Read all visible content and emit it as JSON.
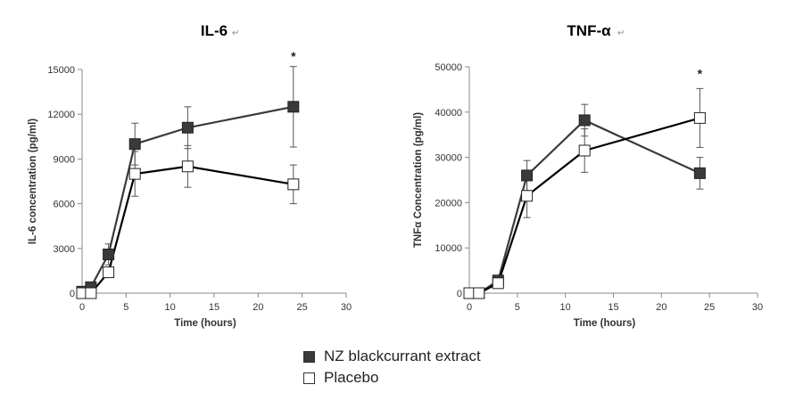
{
  "chart_data": [
    {
      "type": "line",
      "title": "IL-6",
      "title_mark": "↵",
      "xlabel": "Time (hours)",
      "ylabel": "IL-6 concentration (pg/ml)",
      "xlim": [
        0,
        30
      ],
      "ylim": [
        0,
        15000
      ],
      "xticks": [
        0,
        5,
        10,
        15,
        20,
        25,
        30
      ],
      "yticks": [
        0,
        3000,
        6000,
        9000,
        12000,
        15000
      ],
      "grid": false,
      "series": [
        {
          "name": "NZ blackcurrant extract",
          "marker": "filled-square",
          "color": "#3a3a3a",
          "x": [
            0,
            1,
            3,
            6,
            12,
            24
          ],
          "y": [
            100,
            400,
            2600,
            10000,
            11100,
            12500
          ],
          "err": [
            0,
            100,
            700,
            1400,
            1400,
            2700
          ]
        },
        {
          "name": "Placebo",
          "marker": "open-square",
          "color": "#000000",
          "x": [
            0,
            1,
            3,
            6,
            12,
            24
          ],
          "y": [
            0,
            0,
            1400,
            8000,
            8500,
            7300
          ],
          "err": [
            0,
            0,
            300,
            1500,
            1400,
            1300
          ]
        }
      ],
      "annotations": [
        {
          "text": "*",
          "x": 24,
          "y": 15600
        }
      ]
    },
    {
      "type": "line",
      "title": "TNF-α",
      "title_mark": "↵",
      "xlabel": "Time (hours)",
      "ylabel": "TNFα Concentration (pg/ml)",
      "xlim": [
        0,
        30
      ],
      "ylim": [
        0,
        50000
      ],
      "xticks": [
        0,
        5,
        10,
        15,
        20,
        25,
        30
      ],
      "yticks": [
        0,
        10000,
        20000,
        30000,
        40000,
        50000
      ],
      "grid": false,
      "series": [
        {
          "name": "NZ blackcurrant extract",
          "marker": "filled-square",
          "color": "#3a3a3a",
          "x": [
            0,
            1,
            3,
            6,
            12,
            24
          ],
          "y": [
            0,
            0,
            2800,
            26000,
            38200,
            26500
          ],
          "err": [
            0,
            0,
            800,
            3300,
            3500,
            3500
          ]
        },
        {
          "name": "Placebo",
          "marker": "open-square",
          "color": "#000000",
          "x": [
            0,
            1,
            3,
            6,
            12,
            24
          ],
          "y": [
            0,
            0,
            2200,
            21500,
            31500,
            38700
          ],
          "err": [
            0,
            0,
            700,
            4800,
            4800,
            6500
          ]
        }
      ],
      "annotations": [
        {
          "text": "*",
          "x": 24,
          "y": 47500
        }
      ]
    }
  ],
  "legend": {
    "items": [
      {
        "label": "NZ blackcurrant extract",
        "fill": "#3a3a3a"
      },
      {
        "label": "Placebo",
        "fill": "#ffffff"
      }
    ]
  }
}
